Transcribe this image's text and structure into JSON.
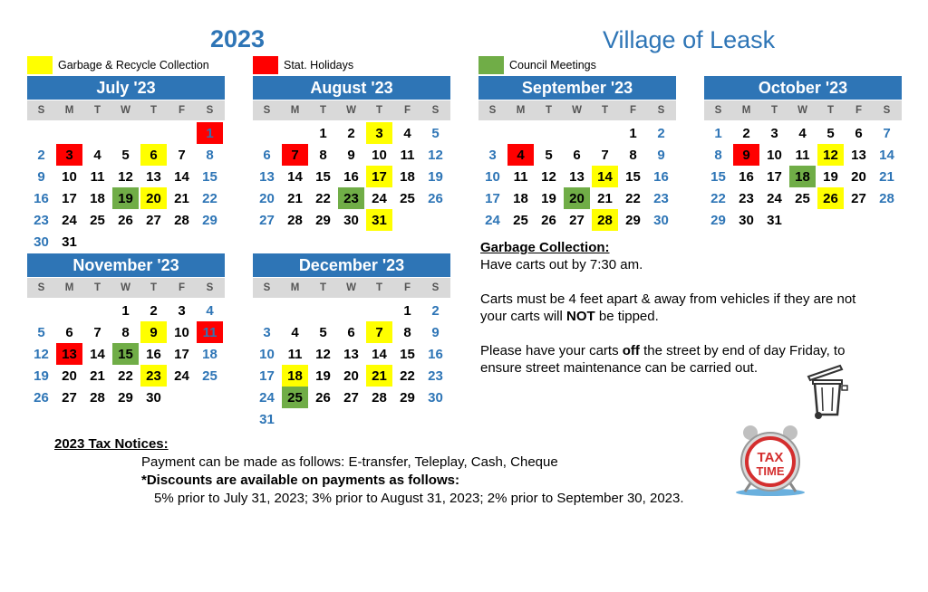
{
  "header": {
    "year": "2023",
    "village": "Village of Leask"
  },
  "legend": [
    {
      "label": "Garbage & Recycle Collection",
      "color": "#ffff00"
    },
    {
      "label": "Stat. Holidays",
      "color": "#ff0000"
    },
    {
      "label": "Council Meetings",
      "color": "#70ad47"
    }
  ],
  "weekdays": [
    "S",
    "M",
    "T",
    "W",
    "T",
    "F",
    "S"
  ],
  "months": [
    {
      "title": "July '23",
      "offset": 6,
      "days": 31,
      "garbage": [
        6,
        20
      ],
      "holidays": [
        1,
        3
      ],
      "council": [
        19
      ]
    },
    {
      "title": "August '23",
      "offset": 2,
      "days": 31,
      "garbage": [
        3,
        17,
        31
      ],
      "holidays": [
        7
      ],
      "council": [
        23
      ]
    },
    {
      "title": "September '23",
      "offset": 5,
      "days": 30,
      "garbage": [
        14,
        28
      ],
      "holidays": [
        4
      ],
      "council": [
        20
      ]
    },
    {
      "title": "October '23",
      "offset": 0,
      "days": 31,
      "garbage": [
        12,
        26
      ],
      "holidays": [
        9
      ],
      "council": [
        18
      ]
    },
    {
      "title": "November '23",
      "offset": 3,
      "days": 30,
      "garbage": [
        9,
        23
      ],
      "holidays": [
        11,
        13
      ],
      "council": [
        15
      ]
    },
    {
      "title": "December '23",
      "offset": 5,
      "days": 31,
      "garbage": [
        7,
        18,
        21
      ],
      "holidays": [],
      "council": [
        25
      ]
    }
  ],
  "garbage_info": {
    "heading": "Garbage Collection:",
    "line1": "Have carts out by 7:30 am.",
    "p2_a": "Carts must be 4 feet apart & away from vehicles if they are not your carts will ",
    "p2_bold": "NOT",
    "p2_b": " be tipped.",
    "p3_a": "Please have your carts ",
    "p3_bold": "off",
    "p3_b": " the street by end of day Friday, to ensure street maintenance can be  carried out."
  },
  "tax": {
    "heading": "2023 Tax Notices:",
    "payment": "Payment can be made as follows: E-transfer, Teleplay, Cash, Cheque",
    "discounts_heading": "*Discounts are available on payments as follows:",
    "discounts": "5% prior to July 31, 2023; 3% prior to August 31, 2023; 2% prior to September 30, 2023."
  },
  "tax_clock": {
    "text1": "TAX",
    "text2": "TIME"
  }
}
